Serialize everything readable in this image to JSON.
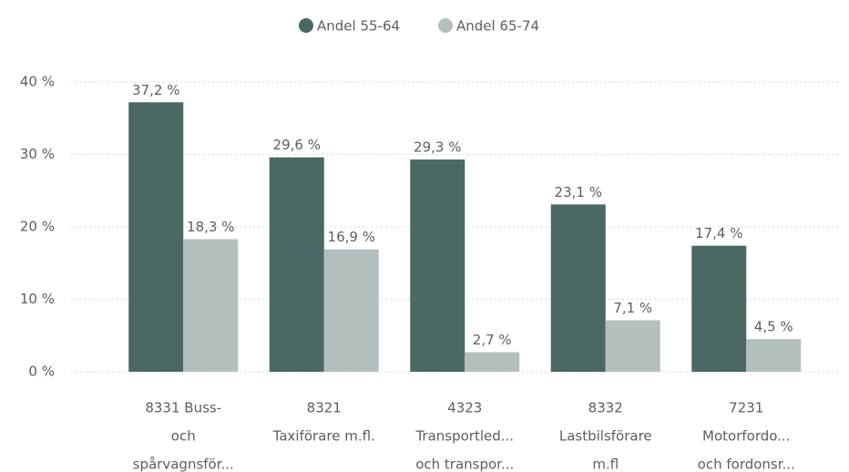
{
  "chart_data": {
    "type": "bar",
    "categories": [
      [
        "8331 Buss-",
        "och",
        "spårvagnsför..."
      ],
      [
        "8321",
        "Taxiförare m.fl."
      ],
      [
        "4323",
        "Transportled...",
        "och transpor..."
      ],
      [
        "8332",
        "Lastbilsförare",
        "m.fl"
      ],
      [
        "7231",
        "Motorfordo...",
        "och fordonsr..."
      ]
    ],
    "series": [
      {
        "name": "Andel 55-64",
        "color": "#4a6864",
        "values": [
          37.2,
          29.6,
          29.3,
          23.1,
          17.4
        ],
        "value_labels": [
          "37,2 %",
          "29,6 %",
          "29,3 %",
          "23,1 %",
          "17,4 %"
        ]
      },
      {
        "name": "Andel 65-74",
        "color": "#b3bfbe",
        "values": [
          18.3,
          16.9,
          2.7,
          7.1,
          4.5
        ],
        "value_labels": [
          "18,3 %",
          "16,9 %",
          "2,7 %",
          "7,1 %",
          "4,5 %"
        ]
      }
    ],
    "ylim": [
      0,
      40
    ],
    "yticks": [
      {
        "value": 0,
        "label": "0 %"
      },
      {
        "value": 10,
        "label": "10 %"
      },
      {
        "value": 20,
        "label": "20 %"
      },
      {
        "value": 30,
        "label": "30 %"
      },
      {
        "value": 40,
        "label": "40 %"
      }
    ],
    "grid": true,
    "legend": "top"
  }
}
